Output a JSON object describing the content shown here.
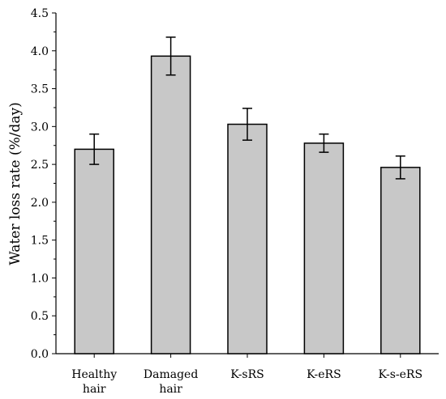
{
  "chart_data": {
    "type": "bar",
    "title": "",
    "xlabel": "",
    "ylabel": "Water loss rate (%/day)",
    "categories": [
      [
        "Healthy",
        "hair"
      ],
      [
        "Damaged",
        "hair"
      ],
      [
        "K-sRS"
      ],
      [
        "K-eRS"
      ],
      [
        "K-s-eRS"
      ]
    ],
    "values": [
      2.7,
      3.93,
      3.03,
      2.78,
      2.46
    ],
    "errors": [
      0.2,
      0.25,
      0.21,
      0.12,
      0.15
    ],
    "ylim": [
      0,
      4.5
    ],
    "yticks": [
      "0.0",
      "0.5",
      "1.0",
      "1.5",
      "2.0",
      "2.5",
      "3.0",
      "3.5",
      "4.0",
      "4.5"
    ],
    "grid": false,
    "legend": "none",
    "bar_color": "#c8c8c8",
    "edge_color": "#000000"
  }
}
